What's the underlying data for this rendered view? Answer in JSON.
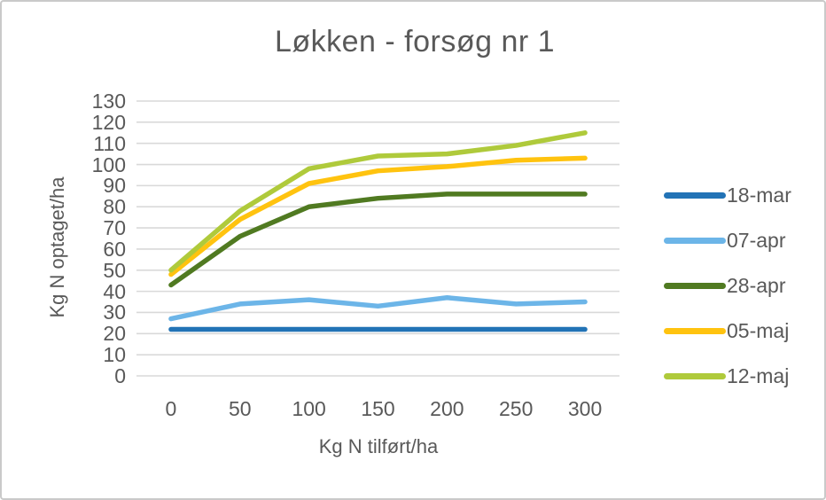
{
  "chart_data": {
    "type": "line",
    "title": "Løkken - forsøg nr 1",
    "xlabel": "Kg N tilført/ha",
    "ylabel": "Kg N optaget/ha",
    "x": [
      0,
      50,
      100,
      150,
      200,
      250,
      300
    ],
    "xtick_labels": [
      "0",
      "50",
      "100",
      "150",
      "200",
      "250",
      "300"
    ],
    "yticks": [
      0,
      10,
      20,
      30,
      40,
      50,
      60,
      70,
      80,
      90,
      100,
      110,
      120,
      130
    ],
    "ytick_labels": [
      "0",
      "10",
      "20",
      "30",
      "40",
      "50",
      "60",
      "70",
      "80",
      "90",
      "100",
      "110",
      "120",
      "130"
    ],
    "ylim": [
      0,
      130
    ],
    "grid": true,
    "legend_position": "right",
    "series": [
      {
        "name": "18-mar",
        "color": "#2273B6",
        "values": [
          22,
          22,
          22,
          22,
          22,
          22,
          22
        ]
      },
      {
        "name": "07-apr",
        "color": "#6CB5E8",
        "values": [
          27,
          34,
          36,
          33,
          37,
          34,
          35
        ]
      },
      {
        "name": "28-apr",
        "color": "#507A21",
        "values": [
          43,
          66,
          80,
          84,
          86,
          86,
          86
        ]
      },
      {
        "name": "05-maj",
        "color": "#FFC30F",
        "values": [
          48,
          74,
          91,
          97,
          99,
          102,
          103
        ]
      },
      {
        "name": "12-maj",
        "color": "#AFCA3B",
        "values": [
          50,
          78,
          98,
          104,
          105,
          109,
          115
        ]
      }
    ]
  },
  "colors": {
    "grid": "#D9D9D9",
    "text": "#595959",
    "border": "#C9C9C9",
    "background": "#FFFFFF"
  }
}
